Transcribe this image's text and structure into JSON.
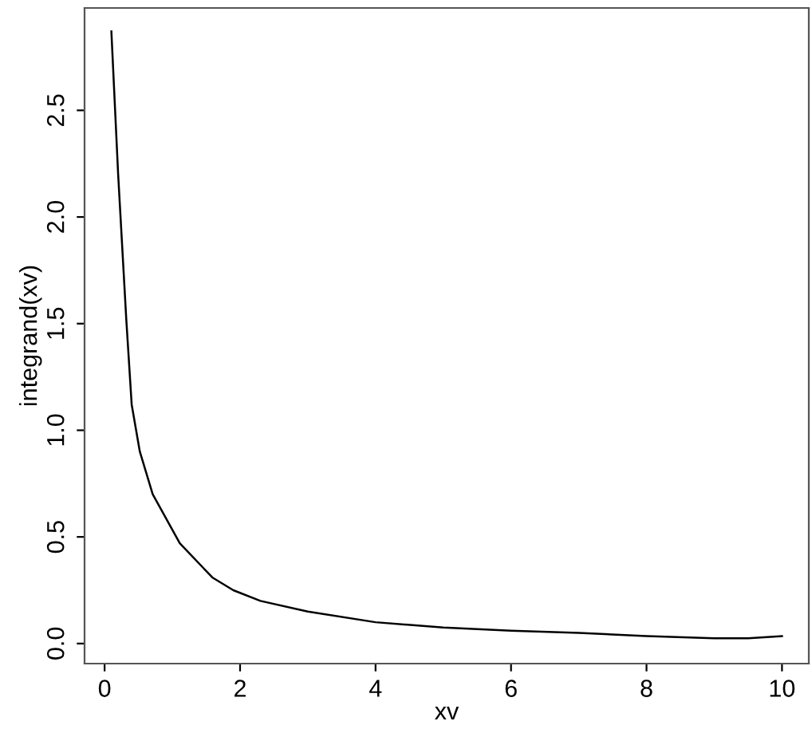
{
  "chart_data": {
    "type": "line",
    "xlabel": "xv",
    "ylabel": "integrand(xv)",
    "x": [
      0.1,
      0.2,
      0.32,
      0.4,
      0.52,
      0.71,
      1.11,
      1.59,
      1.9,
      2.3,
      3.0,
      4.0,
      5.0,
      6.0,
      7.0,
      8.0,
      9.0,
      9.5,
      10.0
    ],
    "series": [
      {
        "color": "#000000",
        "values": [
          2.87,
          2.2,
          1.52,
          1.12,
          0.9,
          0.7,
          0.47,
          0.31,
          0.25,
          0.2,
          0.15,
          0.1,
          0.075,
          0.06,
          0.05,
          0.035,
          0.025,
          0.025,
          0.035
        ]
      }
    ],
    "xlim": [
      -0.296,
      10.396
    ],
    "ylim": [
      -0.094,
      2.98
    ],
    "xticks": [
      0,
      2,
      4,
      6,
      8,
      10
    ],
    "yticks": [
      {
        "value": 0,
        "label": "0.0"
      },
      {
        "value": 0.5,
        "label": "0.5"
      },
      {
        "value": 1,
        "label": "1.0"
      },
      {
        "value": 1.5,
        "label": "1.5"
      },
      {
        "value": 2,
        "label": "2.0"
      },
      {
        "value": 2.5,
        "label": "2.5"
      }
    ],
    "grid": false,
    "line_style": "solid",
    "marker": "none"
  }
}
